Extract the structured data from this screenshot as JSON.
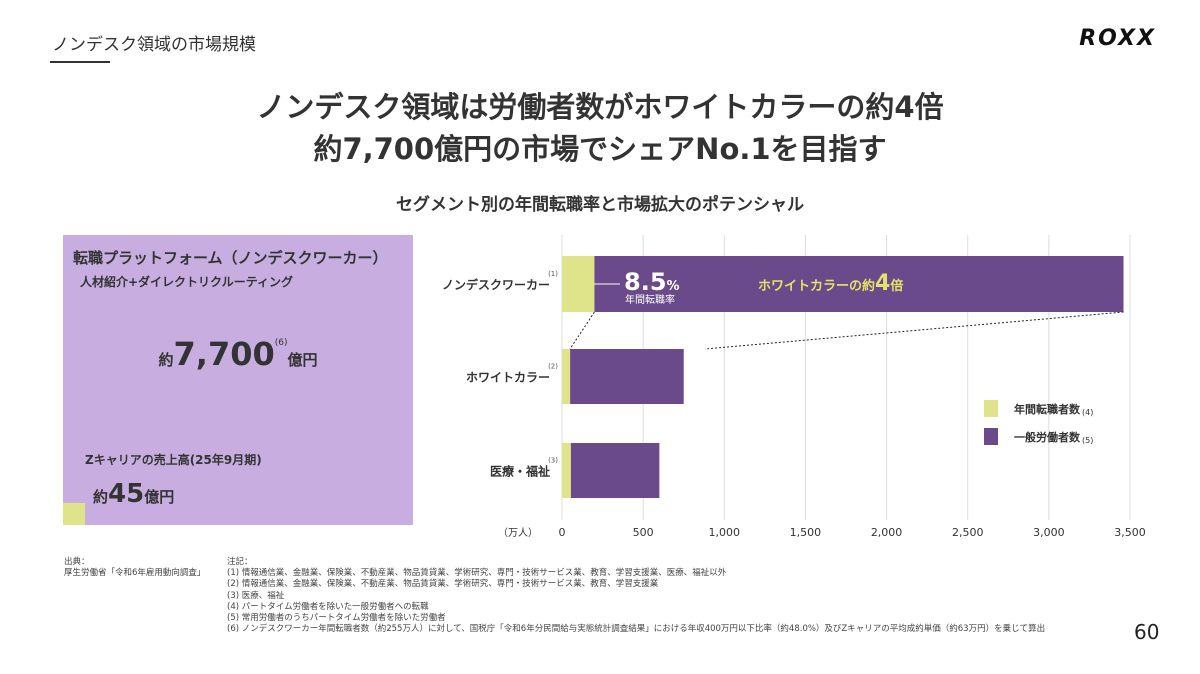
{
  "header": {
    "section": "ノンデスク領域の市場規模",
    "logo": "ROXX"
  },
  "headline": {
    "line1": "ノンデスク領域は労働者数がホワイトカラーの約4倍",
    "line2": "約7,700億円の市場でシェアNo.1を目指す"
  },
  "subtitle": "セグメント別の年間転職率と市場拡大のポテンシャル",
  "box": {
    "title": "転職プラットフォーム（ノンデスクワーカー）",
    "sub": "人材紹介+ダイレクトリクルーティング",
    "market_prefix": "約",
    "market_value": "7,700",
    "market_unit": "億円",
    "market_note": "(6)",
    "z_title": "Zキャリアの売上高(25年9月期)",
    "z_prefix": "約",
    "z_value": "45",
    "z_unit": "億円",
    "bg_color": "#c8aee0"
  },
  "chart_data": {
    "type": "bar",
    "orientation": "horizontal",
    "stacked": true,
    "xlabel": "（万人）",
    "xlim": [
      0,
      3500
    ],
    "xticks": [
      "0",
      "500",
      "1,000",
      "1,500",
      "2,000",
      "2,500",
      "3,000",
      "3,500"
    ],
    "grid": true,
    "categories": [
      "ノンデスクワーカー",
      "ホワイトカラー",
      "医療・福祉"
    ],
    "category_notes": [
      "(1)",
      "(2)",
      "(3)"
    ],
    "series": [
      {
        "name": "年間転職者数",
        "note": "(4)",
        "color": "#dfe389",
        "values": [
          200,
          50,
          55
        ]
      },
      {
        "name": "一般労働者数",
        "note": "(5)",
        "color": "#6a4a8a",
        "values": [
          3260,
          700,
          545
        ]
      }
    ],
    "legend": "right",
    "annotations": {
      "rate_value": "8.5",
      "rate_unit": "%",
      "rate_label": "年間転職率",
      "ratio_prefix": "ホワイトカラーの約",
      "ratio_value": "4",
      "ratio_suffix": "倍",
      "ratio_color": "#e3e36a"
    }
  },
  "notes": {
    "source_label": "出典：",
    "source": "厚生労働省「令和6年雇用動向調査」",
    "notes_label": "注記：",
    "items": [
      "(1) 情報通信業、金融業、保険業、不動産業、物品賃貸業、学術研究、専門・技術サービス業、教育、学習支援業、医療、福祉以外",
      "(2) 情報通信業、金融業、保険業、不動産業、物品賃貸業、学術研究、専門・技術サービス業、教育、学習支援業",
      "(3) 医療、福祉",
      "(4) パートタイム労働者を除いた一般労働者への転職",
      "(5) 常用労働者のうちパートタイム労働者を除いた労働者",
      "(6) ノンデスクワーカー年間転職者数（約255万人）に対して、国税庁「令和6年分民間給与実態統計調査結果」における年収400万円以下比率（約48.0%）及びZキャリアの平均成約単価（約63万円）を乗じて算出"
    ]
  },
  "page_number": "60"
}
